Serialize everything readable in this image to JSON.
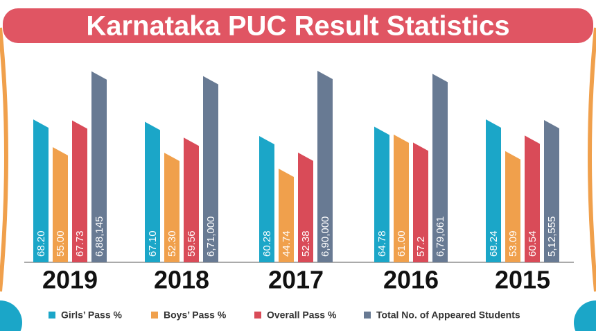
{
  "chart_data": {
    "type": "bar",
    "title": "Karnataka PUC Result Statistics",
    "categories": [
      "2019",
      "2018",
      "2017",
      "2016",
      "2015"
    ],
    "series": [
      {
        "name": "Girls’ Pass %",
        "color": "#1ba6c8",
        "values": [
          68.2,
          67.1,
          60.28,
          64.78,
          68.24
        ],
        "value_labels": [
          "68.20",
          "67.10",
          "60.28",
          "64.78",
          "68.24"
        ]
      },
      {
        "name": "Boys’ Pass %",
        "color": "#f0a04c",
        "values": [
          55,
          52.3,
          44.74,
          61,
          53.09
        ],
        "value_labels": [
          "55.00",
          "52.30",
          "44.74",
          "61.00",
          "53.09"
        ]
      },
      {
        "name": "Overall Pass %",
        "color": "#d94b58",
        "values": [
          67.73,
          59.56,
          52.38,
          57.2,
          60.54
        ],
        "value_labels": [
          "67.73",
          "59.56",
          "52.38",
          "57.2",
          "60.54"
        ]
      },
      {
        "name": "Total No. of Appeared Students",
        "color": "#687a93",
        "axis": "y2",
        "values": [
          688145,
          671000,
          690000,
          679061,
          512555
        ],
        "value_labels": [
          "6,88,145",
          "6,71,000",
          "6,90,000",
          "6,79,061",
          "5,12,555"
        ]
      }
    ]
  }
}
